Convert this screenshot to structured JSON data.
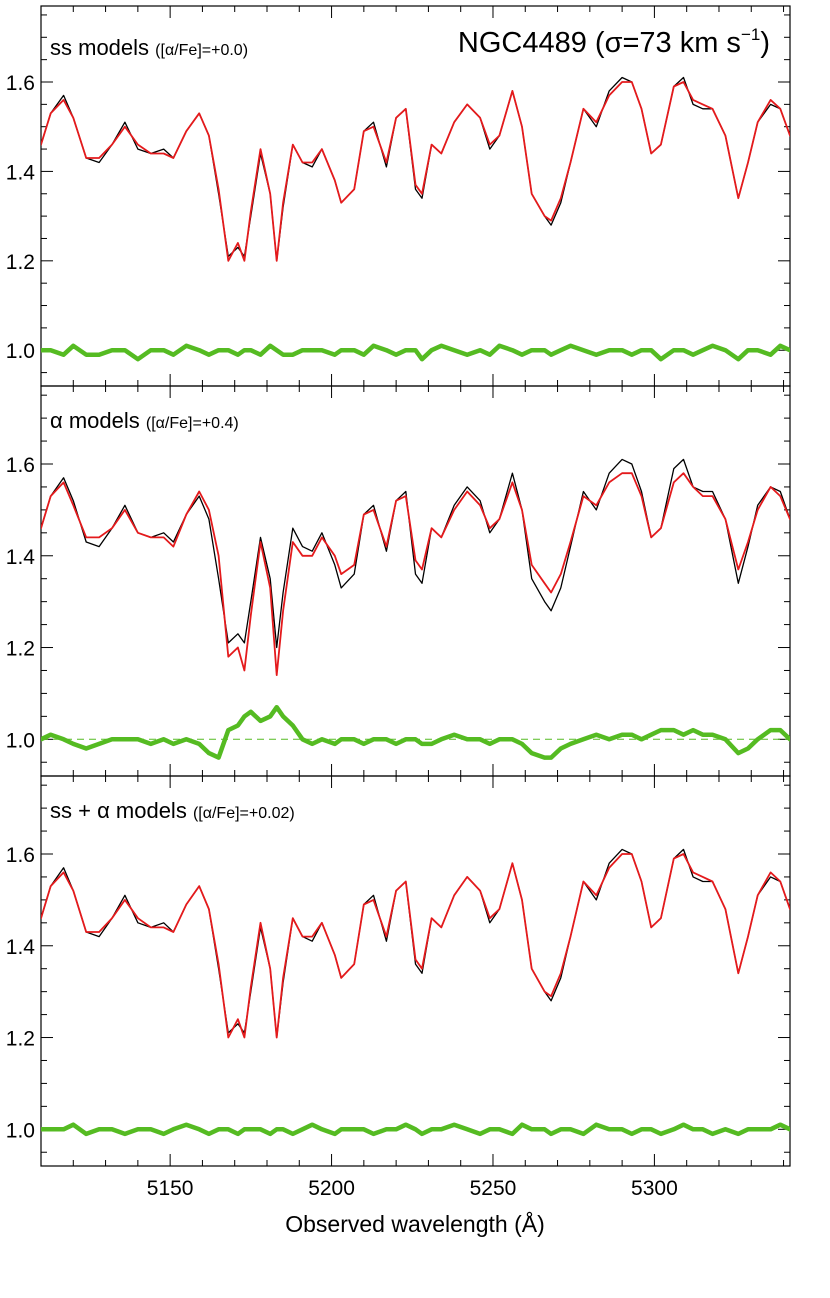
{
  "figure": {
    "title_object": "NGC4489",
    "title_sigma_prefix": "(σ=73 km s",
    "title_sigma_exp": "−1",
    "title_sigma_suffix": ")",
    "xlabel": "Observed wavelength (Å)"
  },
  "panels": [
    {
      "label_main": "ss models",
      "label_sub": "([α/Fe]=+0.0)"
    },
    {
      "label_main": "α models",
      "label_sub": "([α/Fe]=+0.4)"
    },
    {
      "label_main": "ss + α models",
      "label_sub": "([α/Fe]=+0.02)"
    }
  ],
  "colors": {
    "observed": "#000000",
    "model": "#e41a1c",
    "residual": "#55bb22",
    "unity_line": "#55bb22"
  },
  "chart_data": [
    {
      "type": "line",
      "title": "ss models ([α/Fe]=+0.0)",
      "xlabel": "Observed wavelength (Å)",
      "ylabel": "",
      "xlim": [
        5110,
        5342
      ],
      "ylim": [
        0.92,
        1.77
      ],
      "x_ticks": [
        5150,
        5200,
        5250,
        5300
      ],
      "y_ticks": [
        1.0,
        1.2,
        1.4,
        1.6
      ],
      "y_tick_labels": [
        "1.0",
        "1.2",
        "1.4",
        "1.6"
      ],
      "x": [
        5110,
        5113,
        5117,
        5120,
        5124,
        5128,
        5132,
        5136,
        5140,
        5144,
        5148,
        5151,
        5155,
        5159,
        5162,
        5165,
        5168,
        5171,
        5173,
        5175,
        5178,
        5181,
        5183,
        5185,
        5188,
        5191,
        5194,
        5197,
        5201,
        5203,
        5207,
        5210,
        5213,
        5217,
        5220,
        5223,
        5226,
        5228,
        5231,
        5234,
        5238,
        5242,
        5246,
        5249,
        5252,
        5256,
        5259,
        5262,
        5266,
        5268,
        5271,
        5274,
        5278,
        5282,
        5286,
        5290,
        5293,
        5296,
        5299,
        5302,
        5306,
        5309,
        5312,
        5315,
        5318,
        5322,
        5326,
        5329,
        5332,
        5336,
        5339,
        5342
      ],
      "series": [
        {
          "values": [
            1.46,
            1.53,
            1.57,
            1.52,
            1.43,
            1.42,
            1.46,
            1.51,
            1.45,
            1.44,
            1.45,
            1.43,
            1.49,
            1.53,
            1.48,
            1.35,
            1.21,
            1.23,
            1.21,
            1.3,
            1.44,
            1.35,
            1.2,
            1.32,
            1.46,
            1.42,
            1.41,
            1.45,
            1.38,
            1.33,
            1.36,
            1.49,
            1.51,
            1.41,
            1.52,
            1.54,
            1.36,
            1.34,
            1.46,
            1.44,
            1.51,
            1.55,
            1.52,
            1.45,
            1.48,
            1.58,
            1.5,
            1.35,
            1.3,
            1.28,
            1.33,
            1.42,
            1.54,
            1.5,
            1.58,
            1.61,
            1.6,
            1.54,
            1.44,
            1.46,
            1.59,
            1.61,
            1.55,
            1.54,
            1.54,
            1.48,
            1.34,
            1.42,
            1.51,
            1.55,
            1.54,
            1.48
          ]
        },
        {
          "values": [
            1.46,
            1.53,
            1.56,
            1.52,
            1.43,
            1.43,
            1.46,
            1.5,
            1.46,
            1.44,
            1.44,
            1.43,
            1.49,
            1.53,
            1.48,
            1.36,
            1.2,
            1.24,
            1.2,
            1.31,
            1.45,
            1.35,
            1.2,
            1.33,
            1.46,
            1.42,
            1.42,
            1.45,
            1.38,
            1.33,
            1.36,
            1.49,
            1.5,
            1.42,
            1.52,
            1.54,
            1.37,
            1.35,
            1.46,
            1.44,
            1.51,
            1.55,
            1.52,
            1.46,
            1.48,
            1.58,
            1.5,
            1.35,
            1.3,
            1.29,
            1.34,
            1.42,
            1.54,
            1.51,
            1.57,
            1.6,
            1.6,
            1.54,
            1.44,
            1.46,
            1.59,
            1.6,
            1.56,
            1.55,
            1.54,
            1.48,
            1.34,
            1.42,
            1.51,
            1.56,
            1.54,
            1.48
          ]
        },
        {
          "values": [
            1.0,
            1.0,
            0.99,
            1.01,
            0.99,
            0.99,
            1.0,
            1.0,
            0.98,
            1.0,
            1.0,
            0.99,
            1.01,
            1.0,
            0.99,
            1.0,
            1.0,
            0.99,
            1.0,
            1.0,
            0.99,
            1.01,
            1.0,
            0.99,
            0.99,
            1.0,
            1.0,
            1.0,
            0.99,
            1.0,
            1.0,
            0.99,
            1.01,
            1.0,
            0.99,
            1.0,
            1.0,
            0.98,
            1.0,
            1.01,
            1.0,
            0.99,
            1.0,
            0.99,
            1.01,
            1.0,
            0.99,
            1.0,
            1.0,
            0.99,
            1.0,
            1.01,
            1.0,
            0.99,
            1.0,
            1.0,
            0.99,
            1.0,
            1.0,
            0.98,
            1.0,
            1.0,
            0.99,
            1.0,
            1.01,
            1.0,
            0.98,
            1.0,
            1.0,
            0.99,
            1.01,
            1.0
          ]
        }
      ]
    },
    {
      "type": "line",
      "title": "α models ([α/Fe]=+0.4)",
      "xlabel": "Observed wavelength (Å)",
      "ylabel": "",
      "xlim": [
        5110,
        5342
      ],
      "ylim": [
        0.92,
        1.77
      ],
      "x_ticks": [
        5150,
        5200,
        5250,
        5300
      ],
      "y_ticks": [
        1.0,
        1.2,
        1.4,
        1.6
      ],
      "y_tick_labels": [
        "1.0",
        "1.2",
        "1.4",
        "1.6"
      ],
      "reference_line": 1.0,
      "x": [
        5110,
        5113,
        5117,
        5120,
        5124,
        5128,
        5132,
        5136,
        5140,
        5144,
        5148,
        5151,
        5155,
        5159,
        5162,
        5165,
        5168,
        5171,
        5173,
        5175,
        5178,
        5181,
        5183,
        5185,
        5188,
        5191,
        5194,
        5197,
        5201,
        5203,
        5207,
        5210,
        5213,
        5217,
        5220,
        5223,
        5226,
        5228,
        5231,
        5234,
        5238,
        5242,
        5246,
        5249,
        5252,
        5256,
        5259,
        5262,
        5266,
        5268,
        5271,
        5274,
        5278,
        5282,
        5286,
        5290,
        5293,
        5296,
        5299,
        5302,
        5306,
        5309,
        5312,
        5315,
        5318,
        5322,
        5326,
        5329,
        5332,
        5336,
        5339,
        5342
      ],
      "series": [
        {
          "values": [
            1.46,
            1.53,
            1.57,
            1.52,
            1.43,
            1.42,
            1.46,
            1.51,
            1.45,
            1.44,
            1.45,
            1.43,
            1.49,
            1.53,
            1.48,
            1.35,
            1.21,
            1.23,
            1.21,
            1.3,
            1.44,
            1.35,
            1.2,
            1.32,
            1.46,
            1.42,
            1.41,
            1.45,
            1.38,
            1.33,
            1.36,
            1.49,
            1.51,
            1.41,
            1.52,
            1.54,
            1.36,
            1.34,
            1.46,
            1.44,
            1.51,
            1.55,
            1.52,
            1.45,
            1.48,
            1.58,
            1.5,
            1.35,
            1.3,
            1.28,
            1.33,
            1.42,
            1.54,
            1.5,
            1.58,
            1.61,
            1.6,
            1.54,
            1.44,
            1.46,
            1.59,
            1.61,
            1.55,
            1.54,
            1.54,
            1.48,
            1.34,
            1.42,
            1.51,
            1.55,
            1.54,
            1.48
          ]
        },
        {
          "values": [
            1.46,
            1.53,
            1.56,
            1.51,
            1.44,
            1.44,
            1.46,
            1.5,
            1.45,
            1.44,
            1.44,
            1.42,
            1.49,
            1.54,
            1.5,
            1.4,
            1.18,
            1.2,
            1.15,
            1.27,
            1.43,
            1.33,
            1.14,
            1.28,
            1.43,
            1.4,
            1.4,
            1.44,
            1.4,
            1.36,
            1.38,
            1.49,
            1.5,
            1.42,
            1.52,
            1.53,
            1.39,
            1.37,
            1.46,
            1.44,
            1.5,
            1.54,
            1.51,
            1.46,
            1.48,
            1.56,
            1.5,
            1.38,
            1.34,
            1.32,
            1.36,
            1.43,
            1.53,
            1.51,
            1.56,
            1.58,
            1.58,
            1.53,
            1.44,
            1.46,
            1.56,
            1.58,
            1.55,
            1.53,
            1.53,
            1.48,
            1.37,
            1.43,
            1.5,
            1.55,
            1.53,
            1.48
          ]
        },
        {
          "values": [
            1.0,
            1.01,
            1.0,
            0.99,
            0.98,
            0.99,
            1.0,
            1.0,
            1.0,
            0.99,
            1.0,
            0.99,
            1.0,
            0.99,
            0.97,
            0.96,
            1.02,
            1.03,
            1.05,
            1.06,
            1.04,
            1.05,
            1.07,
            1.05,
            1.03,
            1.0,
            0.99,
            1.0,
            0.99,
            1.0,
            1.0,
            0.99,
            1.0,
            1.0,
            0.99,
            1.0,
            1.0,
            0.99,
            0.99,
            1.0,
            1.01,
            1.0,
            1.0,
            0.99,
            1.0,
            1.0,
            0.99,
            0.97,
            0.96,
            0.96,
            0.98,
            0.99,
            1.0,
            1.01,
            1.0,
            1.01,
            1.01,
            1.0,
            1.01,
            1.02,
            1.02,
            1.01,
            1.02,
            1.01,
            1.01,
            1.0,
            0.97,
            0.98,
            1.0,
            1.02,
            1.02,
            1.0
          ]
        }
      ]
    },
    {
      "type": "line",
      "title": "ss + α models ([α/Fe]=+0.02)",
      "xlabel": "Observed wavelength (Å)",
      "ylabel": "",
      "xlim": [
        5110,
        5342
      ],
      "ylim": [
        0.92,
        1.77
      ],
      "x_ticks": [
        5150,
        5200,
        5250,
        5300
      ],
      "x_tick_labels": [
        "5150",
        "5200",
        "5250",
        "5300"
      ],
      "y_ticks": [
        1.0,
        1.2,
        1.4,
        1.6
      ],
      "y_tick_labels": [
        "1.0",
        "1.2",
        "1.4",
        "1.6"
      ],
      "x": [
        5110,
        5113,
        5117,
        5120,
        5124,
        5128,
        5132,
        5136,
        5140,
        5144,
        5148,
        5151,
        5155,
        5159,
        5162,
        5165,
        5168,
        5171,
        5173,
        5175,
        5178,
        5181,
        5183,
        5185,
        5188,
        5191,
        5194,
        5197,
        5201,
        5203,
        5207,
        5210,
        5213,
        5217,
        5220,
        5223,
        5226,
        5228,
        5231,
        5234,
        5238,
        5242,
        5246,
        5249,
        5252,
        5256,
        5259,
        5262,
        5266,
        5268,
        5271,
        5274,
        5278,
        5282,
        5286,
        5290,
        5293,
        5296,
        5299,
        5302,
        5306,
        5309,
        5312,
        5315,
        5318,
        5322,
        5326,
        5329,
        5332,
        5336,
        5339,
        5342
      ],
      "series": [
        {
          "values": [
            1.46,
            1.53,
            1.57,
            1.52,
            1.43,
            1.42,
            1.46,
            1.51,
            1.45,
            1.44,
            1.45,
            1.43,
            1.49,
            1.53,
            1.48,
            1.35,
            1.21,
            1.23,
            1.21,
            1.3,
            1.44,
            1.35,
            1.2,
            1.32,
            1.46,
            1.42,
            1.41,
            1.45,
            1.38,
            1.33,
            1.36,
            1.49,
            1.51,
            1.41,
            1.52,
            1.54,
            1.36,
            1.34,
            1.46,
            1.44,
            1.51,
            1.55,
            1.52,
            1.45,
            1.48,
            1.58,
            1.5,
            1.35,
            1.3,
            1.28,
            1.33,
            1.42,
            1.54,
            1.5,
            1.58,
            1.61,
            1.6,
            1.54,
            1.44,
            1.46,
            1.59,
            1.61,
            1.55,
            1.54,
            1.54,
            1.48,
            1.34,
            1.42,
            1.51,
            1.55,
            1.54,
            1.48
          ]
        },
        {
          "values": [
            1.46,
            1.53,
            1.56,
            1.52,
            1.43,
            1.43,
            1.46,
            1.5,
            1.46,
            1.44,
            1.44,
            1.43,
            1.49,
            1.53,
            1.48,
            1.36,
            1.2,
            1.24,
            1.2,
            1.31,
            1.45,
            1.35,
            1.2,
            1.33,
            1.46,
            1.42,
            1.42,
            1.45,
            1.38,
            1.33,
            1.36,
            1.49,
            1.5,
            1.42,
            1.52,
            1.54,
            1.37,
            1.35,
            1.46,
            1.44,
            1.51,
            1.55,
            1.52,
            1.46,
            1.48,
            1.58,
            1.5,
            1.35,
            1.3,
            1.29,
            1.34,
            1.42,
            1.54,
            1.51,
            1.57,
            1.6,
            1.6,
            1.54,
            1.44,
            1.46,
            1.59,
            1.6,
            1.56,
            1.55,
            1.54,
            1.48,
            1.34,
            1.42,
            1.51,
            1.56,
            1.54,
            1.48
          ]
        },
        {
          "values": [
            1.0,
            1.0,
            1.0,
            1.01,
            0.99,
            1.0,
            1.0,
            0.99,
            1.0,
            1.0,
            0.99,
            1.0,
            1.01,
            1.0,
            0.99,
            1.0,
            1.0,
            0.99,
            1.0,
            1.0,
            1.0,
            0.99,
            1.0,
            1.0,
            0.99,
            1.0,
            1.01,
            1.0,
            0.99,
            1.0,
            1.0,
            1.0,
            0.99,
            1.0,
            1.0,
            1.01,
            1.0,
            0.99,
            1.0,
            1.0,
            1.01,
            1.0,
            0.99,
            1.0,
            1.0,
            0.99,
            1.01,
            1.0,
            1.0,
            0.99,
            1.0,
            1.0,
            0.99,
            1.01,
            1.0,
            1.0,
            0.99,
            1.0,
            1.0,
            0.99,
            1.0,
            1.01,
            1.0,
            1.0,
            0.99,
            1.0,
            0.99,
            1.0,
            1.0,
            1.0,
            1.01,
            1.0
          ]
        }
      ]
    }
  ]
}
